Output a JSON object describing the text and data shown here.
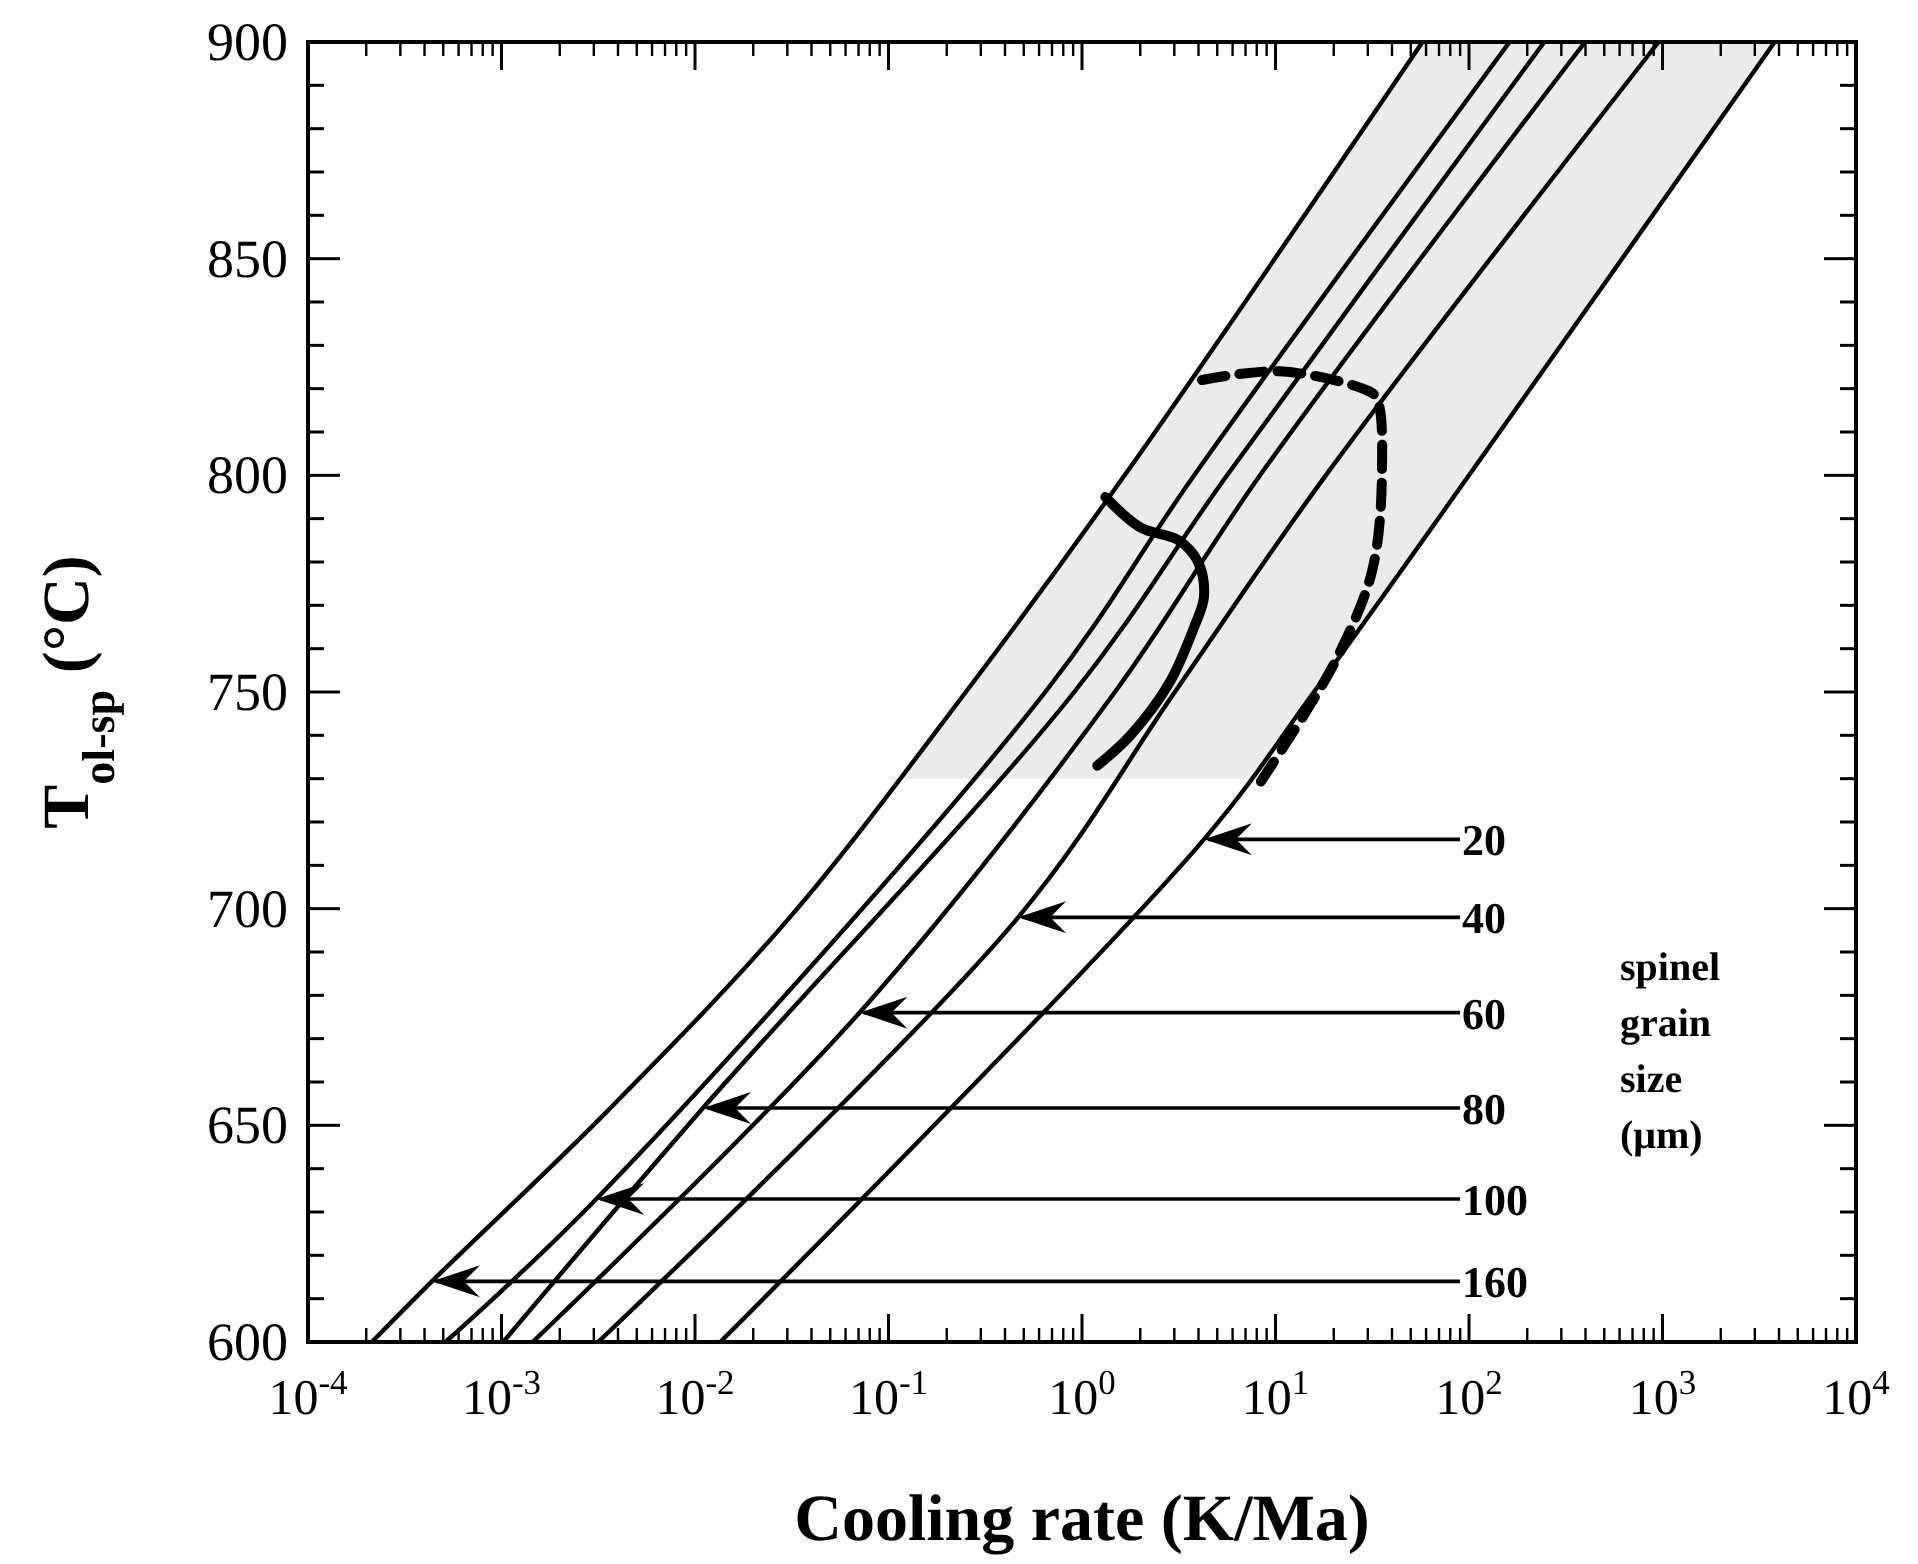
{
  "chart_data": {
    "type": "line",
    "xlabel": "Cooling rate (K/Ma)",
    "ylabel": "T$_{ol-sp}$ (°C)",
    "log": "x",
    "xlim": [
      0.0001,
      10000
    ],
    "xticks": [
      {
        "value": 0.0001,
        "label": "10$^{-4}$"
      },
      {
        "value": 0.001,
        "label": "10$^{-3}$"
      },
      {
        "value": 0.01,
        "label": "10$^{-2}$"
      },
      {
        "value": 0.1,
        "label": "10$^{-1}$"
      },
      {
        "value": 1,
        "label": "10$^{0}$"
      },
      {
        "value": 10,
        "label": "10$^{1}$"
      },
      {
        "value": 100,
        "label": "10$^{2}$"
      },
      {
        "value": 1000,
        "label": "10$^{3}$"
      },
      {
        "value": 10000,
        "label": "10$^{4}$"
      }
    ],
    "ylim": [
      600,
      900
    ],
    "yticks": [
      600,
      {
        "value": 610,
        "label": null
      },
      {
        "value": 620,
        "label": null
      },
      {
        "value": 630,
        "label": null
      },
      {
        "value": 640,
        "label": null
      },
      650,
      {
        "value": 660,
        "label": null
      },
      {
        "value": 670,
        "label": null
      },
      {
        "value": 680,
        "label": null
      },
      {
        "value": 690,
        "label": null
      },
      700,
      {
        "value": 710,
        "label": null
      },
      {
        "value": 720,
        "label": null
      },
      {
        "value": 730,
        "label": null
      },
      {
        "value": 740,
        "label": null
      },
      750,
      {
        "value": 760,
        "label": null
      },
      {
        "value": 770,
        "label": null
      },
      {
        "value": 780,
        "label": null
      },
      {
        "value": 790,
        "label": null
      },
      800,
      {
        "value": 810,
        "label": null
      },
      {
        "value": 820,
        "label": null
      },
      {
        "value": 830,
        "label": null
      },
      {
        "value": 840,
        "label": null
      },
      850,
      {
        "value": 860,
        "label": null
      },
      {
        "value": 870,
        "label": null
      },
      {
        "value": 880,
        "label": null
      },
      {
        "value": 890,
        "label": null
      },
      900
    ],
    "marker": "none",
    "series": [
      {
        "color": "#000000",
        "line_style": "solid",
        "x": [
          0.000214,
          0.000437,
          0.00347,
          0.0309,
          0.251,
          1.66,
          57.5
        ],
        "values": [
          600,
          614,
          653,
          698,
          750,
          800,
          900
        ]
      },
      {
        "color": "#000000",
        "line_style": "solid",
        "x": [
          0.000513,
          0.00309,
          0.646,
          3.8,
          162
        ],
        "values": [
          600,
          633,
          750,
          800,
          900
        ]
      },
      {
        "color": "#000000",
        "line_style": "solid",
        "x": [
          0.00102,
          0.011,
          0.912,
          5.62,
          245
        ],
        "values": [
          600,
          654,
          750,
          800,
          900
        ]
      },
      {
        "color": "#000000",
        "line_style": "solid",
        "x": [
          0.00145,
          0.0708,
          1.48,
          8.32,
          398
        ],
        "values": [
          600,
          676,
          750,
          800,
          900
        ]
      },
      {
        "color": "#000000",
        "line_style": "solid",
        "x": [
          0.00316,
          0.468,
          3.02,
          18.2,
          955
        ],
        "values": [
          600,
          698,
          750,
          800,
          900
        ]
      },
      {
        "color": "#000000",
        "line_style": "solid",
        "x": [
          0.0135,
          4.27,
          15.8,
          100,
          3800
        ],
        "values": [
          600,
          716,
          750,
          800,
          900
        ]
      },
      {
        "color": "#000000",
        "line_style": "solid",
        "x": [
          1.32,
          2.0,
          3.16,
          3.98,
          4.27,
          3.8,
          2.82,
          1.78,
          1.2
        ],
        "values": [
          795,
          788,
          785,
          780,
          772,
          765,
          752,
          740,
          733
        ]
      },
      {
        "color": "#000000",
        "line_style": "dashed",
        "x": [
          4.17,
          10.5,
          28.2,
          33.1,
          35.5,
          31.6,
          21.4,
          15.1,
          7.76
        ],
        "values": [
          822,
          824,
          820,
          818,
          801,
          778,
          759,
          747,
          727
        ]
      }
    ],
    "bands": [
      {
        "axis": "y",
        "from": 730,
        "to": 900,
        "color": "#ebebeb"
      }
    ],
    "annotations": [
      {
        "text": "20",
        "x": 4.27,
        "y": 716
      },
      {
        "text": "40",
        "x": 0.468,
        "y": 698
      },
      {
        "text": "60",
        "x": 0.0708,
        "y": 676
      },
      {
        "text": "80",
        "x": 0.011,
        "y": 654
      },
      {
        "text": "100",
        "x": 0.00309,
        "y": 633
      },
      {
        "text": "160",
        "x": 0.000437,
        "y": 614
      },
      "spinel grain size (μm)"
    ]
  }
}
